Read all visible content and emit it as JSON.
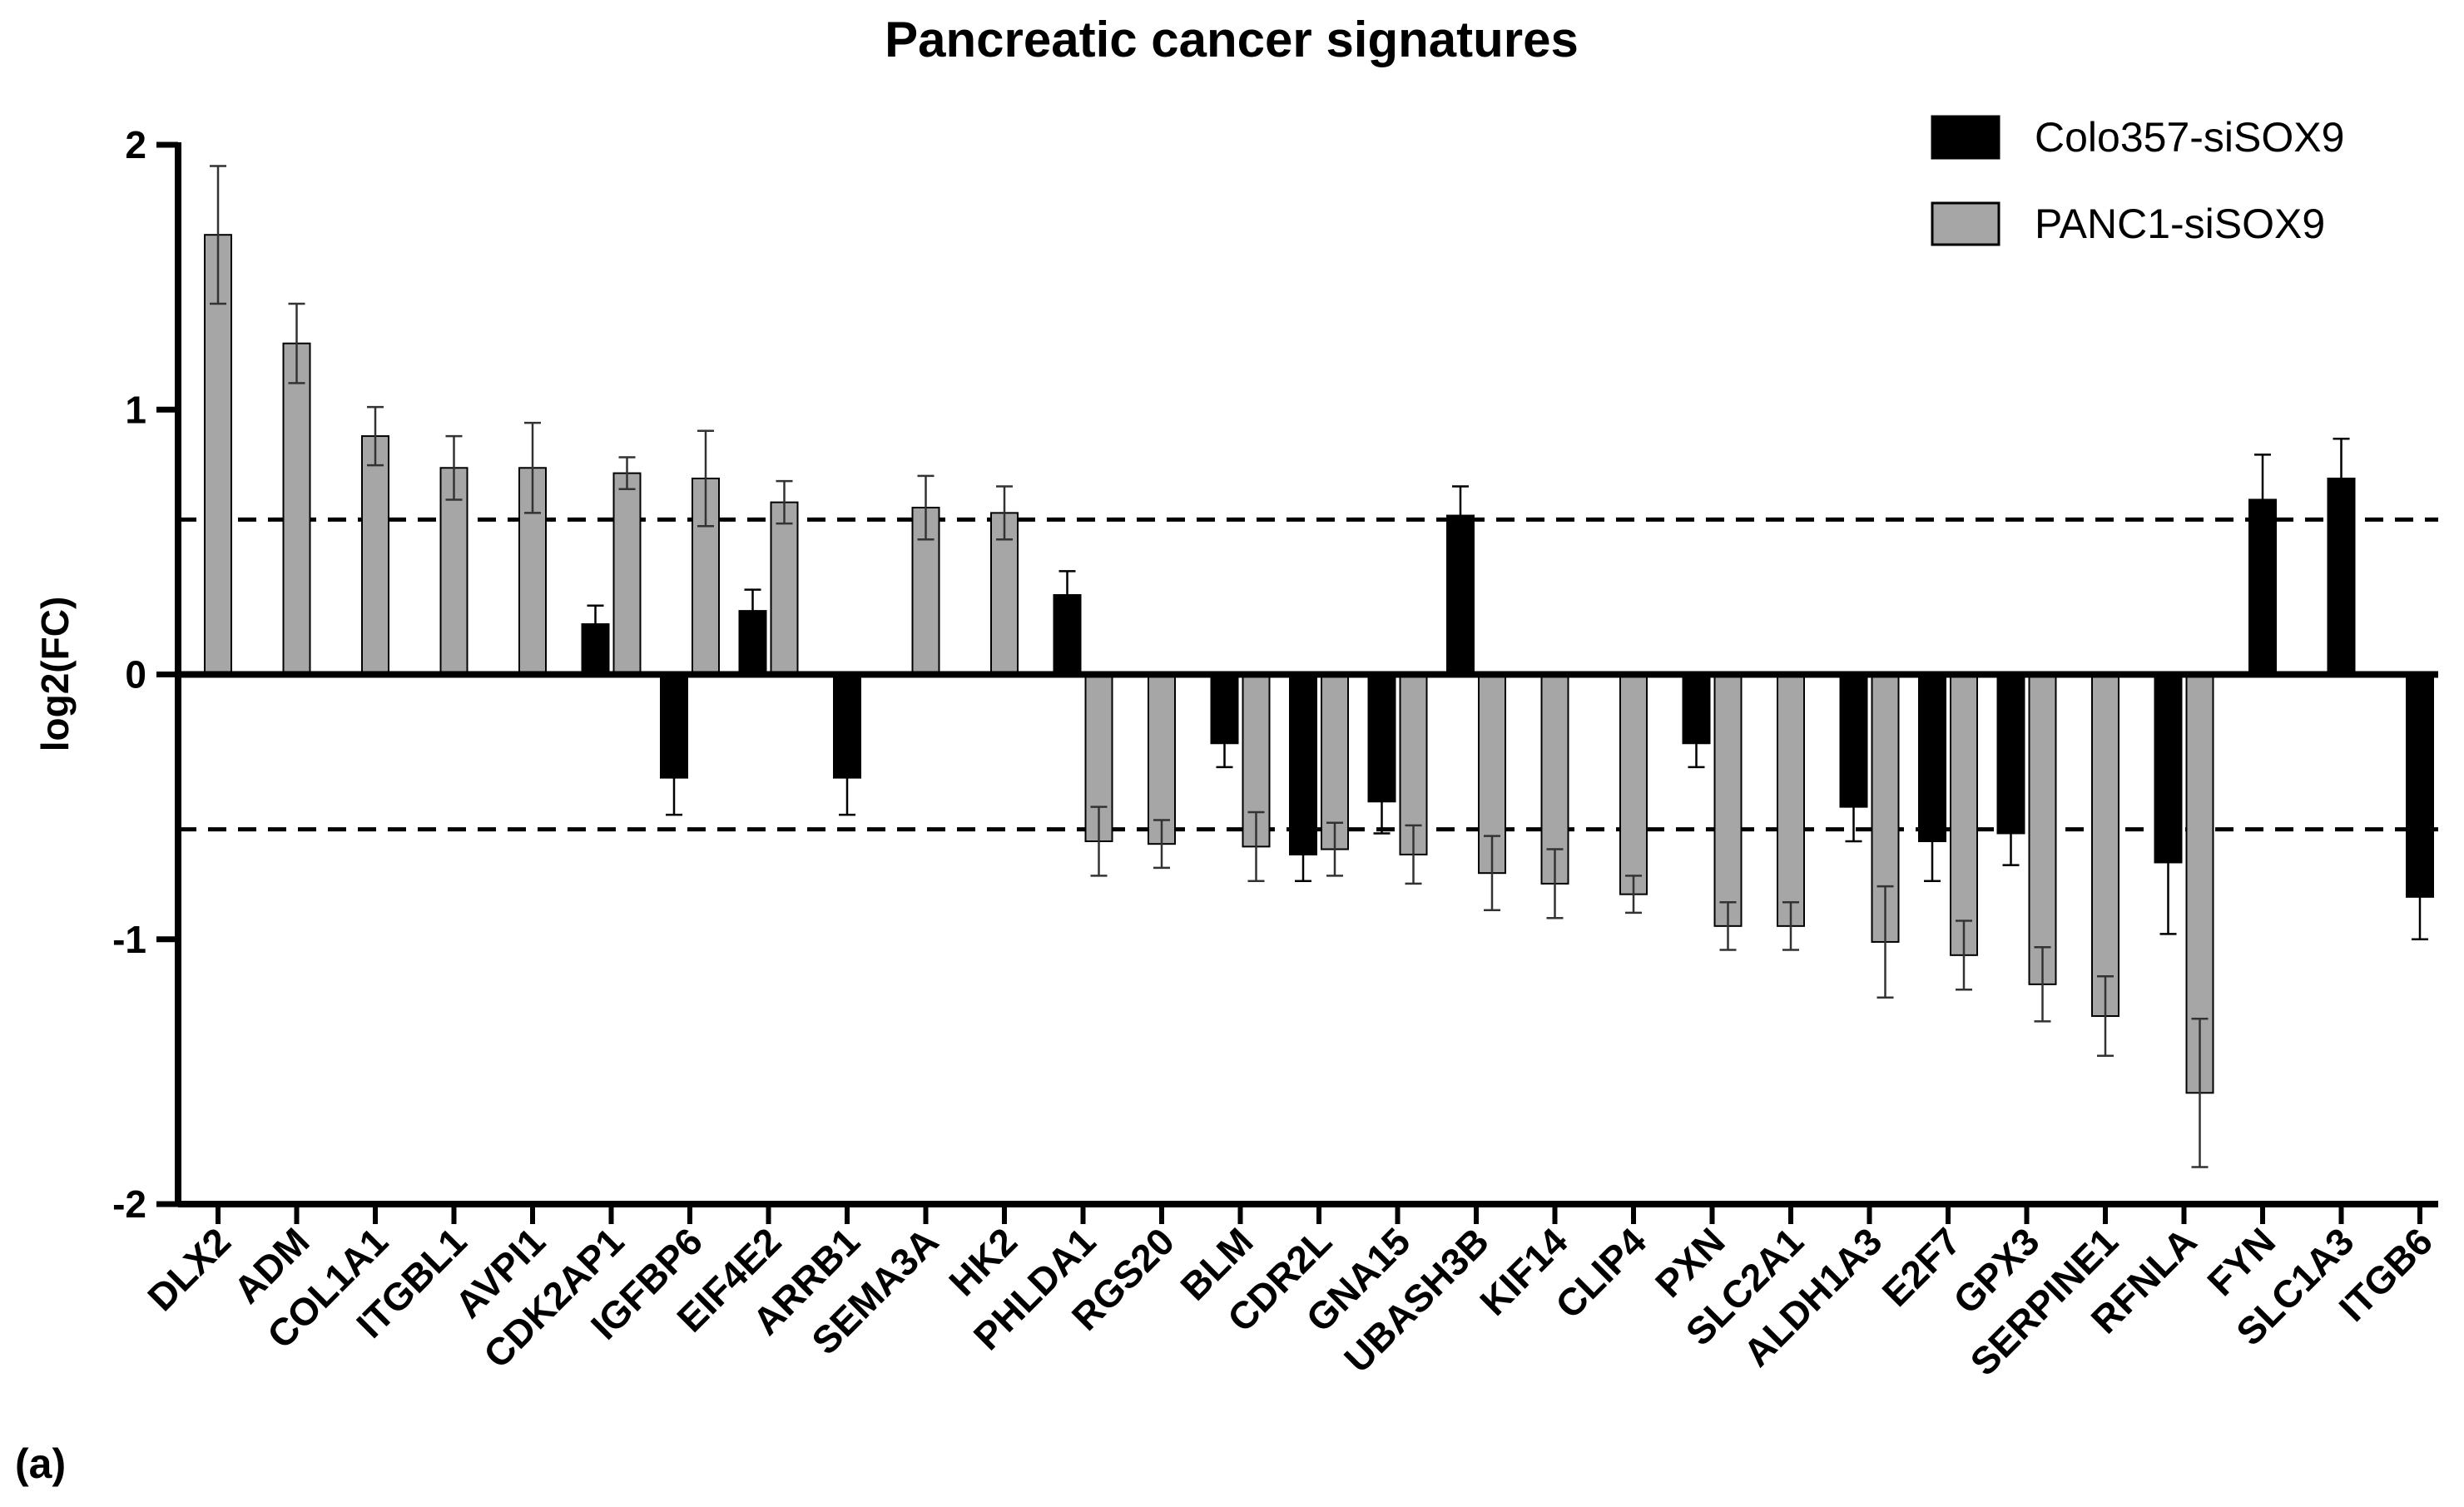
{
  "chart_data": {
    "type": "bar",
    "title": "Pancreatic cancer signatures",
    "xlabel": "",
    "ylabel": "log2(FC)",
    "ylim": [
      -2,
      2
    ],
    "yticks": [
      "2",
      "1",
      "0",
      "-1",
      "-2"
    ],
    "ytick_values": [
      2,
      1,
      0,
      -1,
      -2
    ],
    "threshold_lines": [
      0.585,
      -0.585
    ],
    "panel_label": "(a)",
    "legend_position": "top-right",
    "categories": [
      "DLX2",
      "ADM",
      "COL1A1",
      "ITGBL1",
      "AVPI1",
      "CDK2AP1",
      "IGFBP6",
      "EIF4E2",
      "ARRB1",
      "SEMA3A",
      "HK2",
      "PHLDA1",
      "RGS20",
      "BLM",
      "CDR2L",
      "GNA15",
      "UBASH3B",
      "KIF14",
      "CLIP4",
      "PXN",
      "SLC2A1",
      "ALDH1A3",
      "E2F7",
      "GPX3",
      "SERPINE1",
      "RFNLA",
      "FYN",
      "SLC1A3",
      "ITGB6"
    ],
    "series": [
      {
        "name": "Colo357-siSOX9",
        "color": "#000000",
        "values": [
          null,
          null,
          null,
          null,
          null,
          0.19,
          -0.39,
          0.24,
          -0.39,
          null,
          null,
          0.3,
          null,
          -0.26,
          -0.68,
          -0.48,
          0.6,
          null,
          null,
          -0.26,
          null,
          -0.5,
          -0.63,
          -0.6,
          null,
          -0.71,
          0.66,
          0.74,
          -0.84
        ],
        "errors": [
          null,
          null,
          null,
          null,
          null,
          0.07,
          0.14,
          0.08,
          0.14,
          null,
          null,
          0.09,
          null,
          0.09,
          0.1,
          0.12,
          0.11,
          null,
          null,
          0.09,
          null,
          0.13,
          0.15,
          0.12,
          null,
          0.27,
          0.17,
          0.15,
          0.16
        ]
      },
      {
        "name": "PANC1-siSOX9",
        "color": "#a6a6a6",
        "values": [
          1.66,
          1.25,
          0.9,
          0.78,
          0.78,
          0.76,
          0.74,
          0.65,
          null,
          0.63,
          0.61,
          -0.63,
          -0.64,
          -0.65,
          -0.66,
          -0.68,
          -0.75,
          -0.79,
          -0.83,
          -0.95,
          -0.95,
          -1.01,
          -1.06,
          -1.17,
          -1.29,
          -1.58,
          null,
          null,
          null
        ],
        "errors": [
          0.26,
          0.15,
          0.11,
          0.12,
          0.17,
          0.06,
          0.18,
          0.08,
          null,
          0.12,
          0.1,
          0.13,
          0.09,
          0.13,
          0.1,
          0.11,
          0.14,
          0.13,
          0.07,
          0.09,
          0.09,
          0.21,
          0.13,
          0.14,
          0.15,
          0.28,
          null,
          null,
          null
        ]
      }
    ]
  }
}
